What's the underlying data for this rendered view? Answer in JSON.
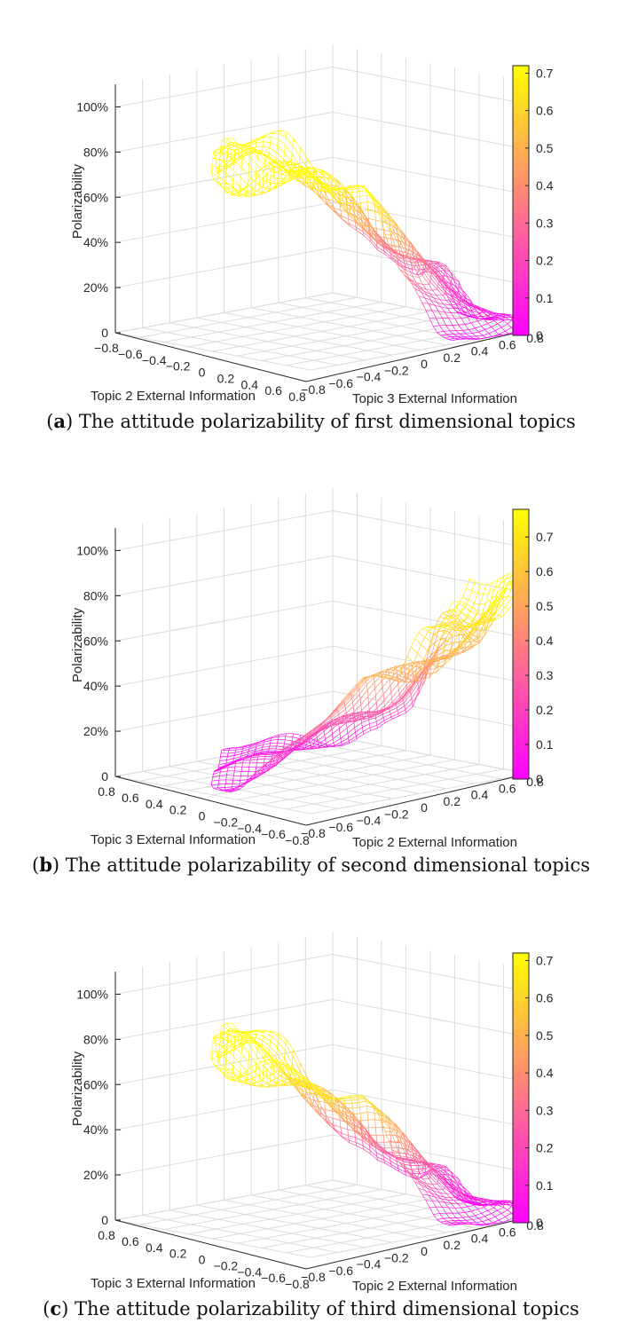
{
  "colors": {
    "low": "#ff00ff",
    "mid": "#ff7f7f",
    "high": "#ffff00",
    "grid": "#dcdcdc",
    "text": "#262626"
  },
  "chart_data": [
    {
      "type": "surface",
      "id": "a",
      "caption_letter": "a",
      "caption_text": " The attitude polarizability of first dimensional topics",
      "zlabel": "Polarizability",
      "left_axis_label": "Topic 2 External Information",
      "right_axis_label": "Topic 3 External Information",
      "left_ticks": [
        "−0.8",
        "−0.6",
        "−0.4",
        "−0.2",
        "0",
        "0.2",
        "0.4",
        "0.6",
        "0.8"
      ],
      "right_ticks": [
        "−0.8",
        "−0.6",
        "−0.4",
        "−0.2",
        "0",
        "0.2",
        "0.4",
        "0.6",
        "0.8"
      ],
      "z_ticks": [
        "0",
        "20%",
        "40%",
        "60%",
        "80%",
        "100%"
      ],
      "zlim": [
        0,
        1.1
      ],
      "colorbar_ticks": [
        "0",
        "0.1",
        "0.2",
        "0.3",
        "0.4",
        "0.5",
        "0.6",
        "0.7"
      ],
      "colorbar_max": 0.72,
      "profile": [
        0.76,
        0.76,
        0.74,
        0.7,
        0.6,
        0.5,
        0.38,
        0.27,
        0.15,
        0.05,
        0.01
      ],
      "width_profile": [
        0.0,
        0.02,
        0.04,
        0.08,
        0.18,
        0.25,
        0.18,
        0.1,
        0.05,
        0.02,
        0.0
      ]
    },
    {
      "type": "surface",
      "id": "b",
      "caption_letter": "b",
      "caption_text": " The attitude polarizability of second dimensional topics",
      "zlabel": "Polarizability",
      "left_axis_label": "Topic 3 External Information",
      "right_axis_label": "Topic 2 External Information",
      "left_ticks": [
        "0.8",
        "0.6",
        "0.4",
        "0.2",
        "0",
        "−0.2",
        "−0.4",
        "−0.6",
        "−0.8"
      ],
      "right_ticks": [
        "−0.8",
        "−0.6",
        "−0.4",
        "−0.2",
        "0",
        "0.2",
        "0.4",
        "0.6",
        "0.8"
      ],
      "z_ticks": [
        "0",
        "20%",
        "40%",
        "60%",
        "80%",
        "100%"
      ],
      "zlim": [
        0,
        1.1
      ],
      "colorbar_ticks": [
        "0",
        "0.1",
        "0.2",
        "0.3",
        "0.4",
        "0.5",
        "0.6",
        "0.7"
      ],
      "colorbar_max": 0.78,
      "profile": [
        0.03,
        0.06,
        0.1,
        0.16,
        0.24,
        0.32,
        0.4,
        0.5,
        0.6,
        0.7,
        0.8
      ],
      "width_profile": [
        0.0,
        0.02,
        0.05,
        0.1,
        0.18,
        0.22,
        0.18,
        0.1,
        0.05,
        0.02,
        0.0
      ]
    },
    {
      "type": "surface",
      "id": "c",
      "caption_letter": "c",
      "caption_text": " The attitude polarizability of third dimensional topics",
      "zlabel": "Polarizability",
      "left_axis_label": "Topic 3 External Information",
      "right_axis_label": "Topic 2 External Information",
      "left_ticks": [
        "0.8",
        "0.6",
        "0.4",
        "0.2",
        "0",
        "−0.2",
        "−0.4",
        "−0.6",
        "−0.8"
      ],
      "right_ticks": [
        "−0.8",
        "−0.6",
        "−0.4",
        "−0.2",
        "0",
        "0.2",
        "0.4",
        "0.6",
        "0.8"
      ],
      "z_ticks": [
        "0",
        "20%",
        "40%",
        "60%",
        "80%",
        "100%"
      ],
      "zlim": [
        0,
        1.1
      ],
      "colorbar_ticks": [
        "0",
        "0.1",
        "0.2",
        "0.3",
        "0.4",
        "0.5",
        "0.6",
        "0.7"
      ],
      "colorbar_max": 0.72,
      "profile": [
        0.77,
        0.76,
        0.68,
        0.58,
        0.48,
        0.4,
        0.32,
        0.22,
        0.12,
        0.05,
        0.02
      ],
      "width_profile": [
        0.0,
        0.03,
        0.06,
        0.12,
        0.2,
        0.25,
        0.2,
        0.12,
        0.06,
        0.02,
        0.0
      ]
    }
  ]
}
